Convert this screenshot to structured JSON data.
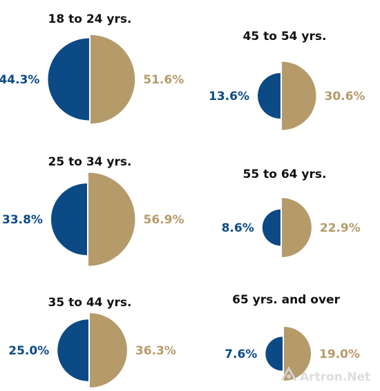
{
  "colors": {
    "left": "#0b4a85",
    "right": "#b59a6a",
    "watermark": "#d9d9d9"
  },
  "chart_data": [
    {
      "type": "pie",
      "title": "18 to 24 yrs.",
      "slices": [
        {
          "value": 44.3,
          "label": "44.3%",
          "color": "#0b4a85"
        },
        {
          "value": 51.6,
          "label": "51.6%",
          "color": "#b59a6a"
        }
      ]
    },
    {
      "type": "pie",
      "title": "45 to 54 yrs.",
      "slices": [
        {
          "value": 13.6,
          "label": "13.6%",
          "color": "#0b4a85"
        },
        {
          "value": 30.6,
          "label": "30.6%",
          "color": "#b59a6a"
        }
      ]
    },
    {
      "type": "pie",
      "title": "25 to 34 yrs.",
      "slices": [
        {
          "value": 33.8,
          "label": "33.8%",
          "color": "#0b4a85"
        },
        {
          "value": 56.9,
          "label": "56.9%",
          "color": "#b59a6a"
        }
      ]
    },
    {
      "type": "pie",
      "title": "55 to 64 yrs.",
      "slices": [
        {
          "value": 8.6,
          "label": "8.6%",
          "color": "#0b4a85"
        },
        {
          "value": 22.9,
          "label": "22.9%",
          "color": "#b59a6a"
        }
      ]
    },
    {
      "type": "pie",
      "title": "35 to 44 yrs.",
      "slices": [
        {
          "value": 25.0,
          "label": "25.0%",
          "color": "#0b4a85"
        },
        {
          "value": 36.3,
          "label": "36.3%",
          "color": "#b59a6a"
        }
      ]
    },
    {
      "type": "pie",
      "title": "65 yrs. and over",
      "slices": [
        {
          "value": 7.6,
          "label": "7.6%",
          "color": "#0b4a85"
        },
        {
          "value": 19.0,
          "label": "19.0%",
          "color": "#b59a6a"
        }
      ]
    }
  ],
  "watermark": {
    "text": "Artron.Net",
    "icon": "artron-logo-icon"
  }
}
